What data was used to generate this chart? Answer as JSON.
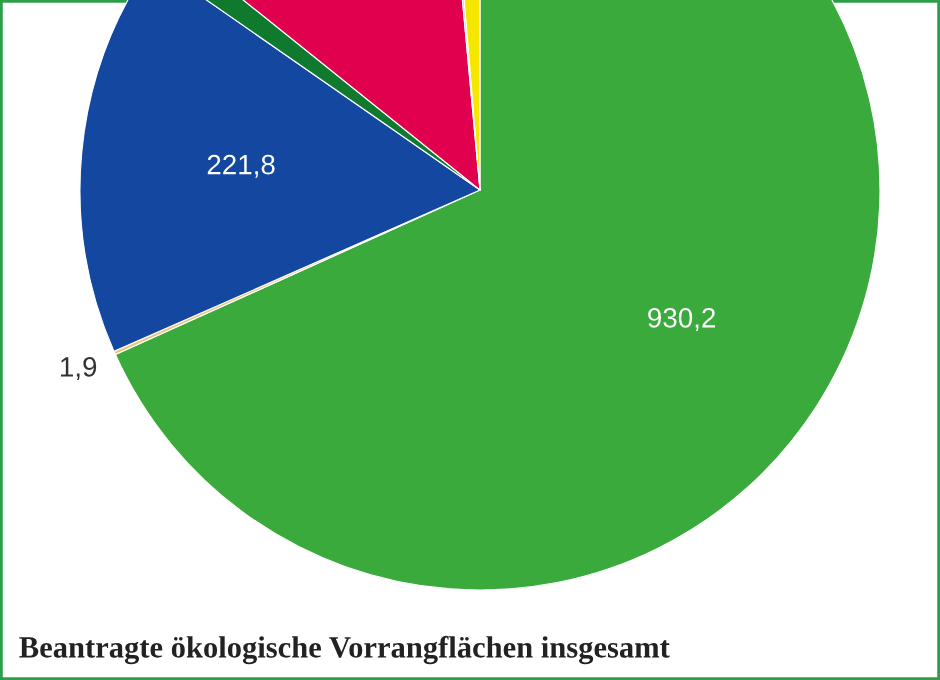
{
  "chart_data": {
    "type": "pie",
    "title": "Beantragte ökologische Vorrangflächen insgesamt",
    "categories": [
      null,
      null,
      null,
      null,
      null,
      null,
      null
    ],
    "values": [
      930.2,
      1.9,
      221.8,
      15,
      174,
      2,
      18
    ],
    "value_labels": [
      "930,2",
      "1,9",
      "221,8",
      null,
      null,
      null,
      null
    ],
    "colors": [
      "#3aaa3c",
      "#e8c47f",
      "#1448a0",
      "#0f7a2e",
      "#e0004d",
      "#8ecae6",
      "#f5e700"
    ],
    "legend": false
  }
}
